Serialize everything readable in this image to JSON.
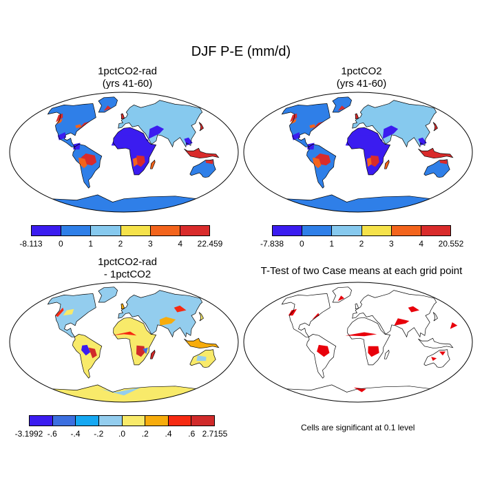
{
  "title": "DJF P-E (mm/d)",
  "panels": [
    {
      "title_line1": "1pctCO2-rad",
      "title_line2": "(yrs 41-60)"
    },
    {
      "title_line1": "1pctCO2",
      "title_line2": "(yrs 41-60)"
    },
    {
      "title_line1": "1pctCO2-rad",
      "title_line2": "- 1pctCO2"
    },
    {
      "title_line1": "T-Test of two Case means at each grid point",
      "title_line2": ""
    }
  ],
  "colorbars": [
    {
      "colors": [
        "#3b1cf0",
        "#2f7fe8",
        "#86c9ee",
        "#f5e24a",
        "#f3641c",
        "#d92b2b"
      ],
      "labels": [
        "-8.113",
        "0",
        "1",
        "2",
        "3",
        "4",
        "22.459"
      ]
    },
    {
      "colors": [
        "#3b1cf0",
        "#2f7fe8",
        "#86c9ee",
        "#f5e24a",
        "#f3641c",
        "#d92b2b"
      ],
      "labels": [
        "-7.838",
        "0",
        "1",
        "2",
        "3",
        "4",
        "20.552"
      ]
    },
    {
      "colors": [
        "#3b1cf0",
        "#3c6fe0",
        "#16a8f2",
        "#93cdee",
        "#f8ea6a",
        "#f7ac0c",
        "#f62a12",
        "#d02a2a"
      ],
      "labels": [
        "-3.1992",
        "-.6",
        "-.4",
        "-.2",
        ".0",
        ".2",
        ".4",
        ".6",
        "2.7155"
      ]
    }
  ],
  "note": "Cells are significant at 0.1 level",
  "colors": {
    "ocean": "#ffffff",
    "coast": "#000000",
    "signif": "#e8000b"
  }
}
